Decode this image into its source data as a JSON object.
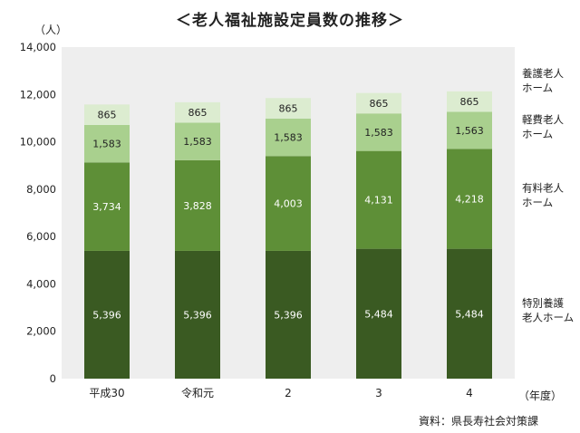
{
  "chart_data": {
    "type": "bar",
    "stacked": true,
    "title": "＜老人福祉施設定員数の推移＞",
    "y_unit": "（人）",
    "x_unit": "（年度）",
    "source": "資料：県長寿社会対策課",
    "categories": [
      "平成30",
      "令和元",
      "2",
      "3",
      "4"
    ],
    "ylim": [
      0,
      14000
    ],
    "yticks": [
      0,
      2000,
      4000,
      6000,
      8000,
      10000,
      12000,
      14000
    ],
    "ytick_labels": [
      "0",
      "2,000",
      "4,000",
      "6,000",
      "8,000",
      "10,000",
      "12,000",
      "14,000"
    ],
    "series": [
      {
        "name": "特別養護\n老人ホーム",
        "values": [
          5396,
          5396,
          5396,
          5484,
          5484
        ],
        "labels": [
          "5,396",
          "5,396",
          "5,396",
          "5,484",
          "5,484"
        ],
        "color": "#3a5a22",
        "label_color": "#ffffff"
      },
      {
        "name": "有料老人\nホーム",
        "values": [
          3734,
          3828,
          4003,
          4131,
          4218
        ],
        "labels": [
          "3,734",
          "3,828",
          "4,003",
          "4,131",
          "4,218"
        ],
        "color": "#5e8f37",
        "label_color": "#ffffff"
      },
      {
        "name": "軽費老人\nホーム",
        "values": [
          1583,
          1583,
          1583,
          1583,
          1563
        ],
        "labels": [
          "1,583",
          "1,583",
          "1,583",
          "1,583",
          "1,563"
        ],
        "color": "#a9d08e",
        "label_color": "#222222"
      },
      {
        "name": "養護老人\nホーム",
        "values": [
          865,
          865,
          865,
          865,
          865
        ],
        "labels": [
          "865",
          "865",
          "865",
          "865",
          "865"
        ],
        "color": "#dcecd0",
        "label_color": "#222222"
      }
    ],
    "plot_background": "#eeeeee",
    "grid": false,
    "legend_placement": "right"
  }
}
